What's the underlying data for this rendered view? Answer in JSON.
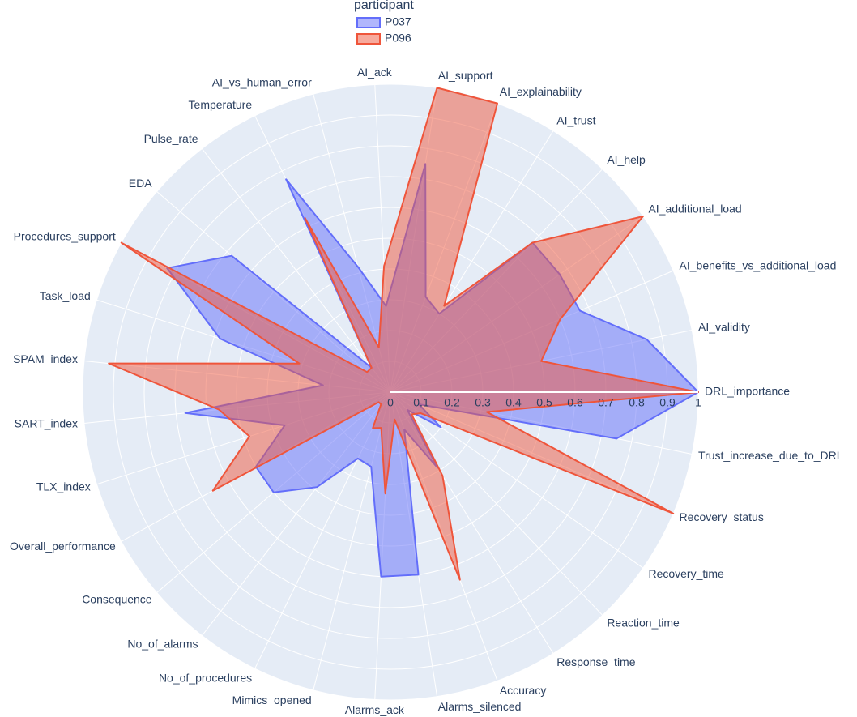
{
  "chart_data": {
    "type": "radar",
    "legend_title": "participant",
    "categories": [
      "DRL_importance",
      "Trust_increase_due_to_DRL",
      "Recovery_status",
      "Recovery_time",
      "Reaction_time",
      "Response_time",
      "Accuracy",
      "Alarms_silenced",
      "Alarms_ack",
      "Mimics_opened",
      "No_of_procedures",
      "No_of_alarms",
      "Consequence",
      "Overall_performance",
      "TLX_index",
      "SART_index",
      "SPAM_index",
      "Task_load",
      "Procedures_support",
      "EDA",
      "Pulse_rate",
      "Temperature",
      "AI_vs_human_error",
      "AI_ack",
      "AI_support",
      "AI_explainability",
      "AI_trust",
      "AI_help",
      "AI_additional_load",
      "AI_benefits_vs_additional_load",
      "AI_validity"
    ],
    "series": [
      {
        "name": "P037",
        "color": "#636efa",
        "values": [
          1.0,
          0.75,
          0.1,
          0.2,
          0.08,
          0.29,
          0.13,
          0.6,
          0.6,
          0.25,
          0.24,
          0.39,
          0.5,
          0.5,
          0.36,
          0.67,
          0.22,
          0.58,
          0.83,
          0.68,
          0.1,
          0.77,
          0.42,
          0.28,
          0.75,
          0.33,
          0.3,
          0.67,
          0.67,
          0.67,
          0.85
        ]
      },
      {
        "name": "P096",
        "color": "#EF553B",
        "values": [
          1.0,
          0.32,
          1.0,
          0.12,
          0.1,
          0.32,
          0.65,
          0.09,
          0.33,
          0.12,
          0.13,
          0.05,
          0.05,
          0.66,
          0.48,
          0.56,
          0.92,
          0.31,
          1.0,
          0.1,
          0.1,
          0.63,
          0.15,
          0.41,
          1.0,
          1.0,
          0.33,
          0.67,
          1.0,
          0.6,
          0.5
        ]
      }
    ],
    "rlim": [
      0,
      1
    ],
    "rticks": [
      0,
      0.1,
      0.2,
      0.3,
      0.4,
      0.5,
      0.6,
      0.7,
      0.8,
      0.9,
      1
    ],
    "direction": "clockwise",
    "grid": true
  }
}
